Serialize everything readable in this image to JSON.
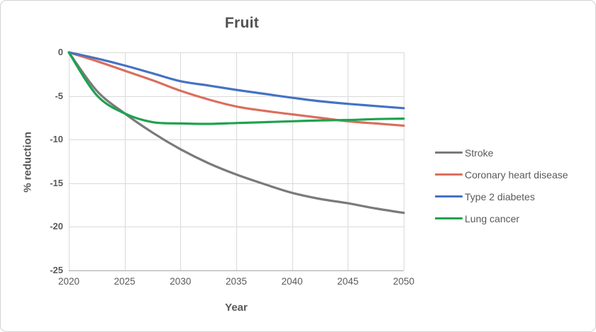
{
  "chart_data": {
    "type": "line",
    "title": "Fruit",
    "xlabel": "Year",
    "ylabel": "% reduction",
    "xlim": [
      2020,
      2050
    ],
    "ylim": [
      -25,
      0
    ],
    "x_ticks": [
      "2020",
      "2025",
      "2030",
      "2035",
      "2040",
      "2045",
      "2050"
    ],
    "y_ticks": [
      "0",
      "-5",
      "-10",
      "-15",
      "-20",
      "-25"
    ],
    "grid": true,
    "legend_position": "right",
    "x": [
      2020,
      2022.5,
      2025,
      2027.5,
      2030,
      2032.5,
      2035,
      2037.5,
      2040,
      2042.5,
      2045,
      2047.5,
      2050
    ],
    "series": [
      {
        "name": "Stroke",
        "color": "#7A7A7A",
        "values": [
          0,
          -4.4,
          -7.0,
          -9.2,
          -11.1,
          -12.7,
          -14.0,
          -15.1,
          -16.1,
          -16.8,
          -17.3,
          -17.9,
          -18.4
        ]
      },
      {
        "name": "Coronary heart disease",
        "color": "#DB6E5C",
        "values": [
          0,
          -1.0,
          -2.1,
          -3.2,
          -4.4,
          -5.4,
          -6.2,
          -6.7,
          -7.1,
          -7.5,
          -7.9,
          -8.15,
          -8.4
        ]
      },
      {
        "name": "Type 2 diabetes",
        "color": "#4472C4",
        "values": [
          0,
          -0.7,
          -1.5,
          -2.4,
          -3.3,
          -3.8,
          -4.3,
          -4.75,
          -5.2,
          -5.6,
          -5.9,
          -6.15,
          -6.4
        ]
      },
      {
        "name": "Lung cancer",
        "color": "#1FA24F",
        "values": [
          0,
          -4.9,
          -7.0,
          -8.0,
          -8.15,
          -8.2,
          -8.1,
          -8.0,
          -7.9,
          -7.8,
          -7.75,
          -7.65,
          -7.6
        ]
      }
    ]
  },
  "styles": {
    "text_color": "#595959",
    "title_color": "#515151",
    "grid_color": "#D9D9D9",
    "axis_line_color": "#A6A6A6"
  }
}
